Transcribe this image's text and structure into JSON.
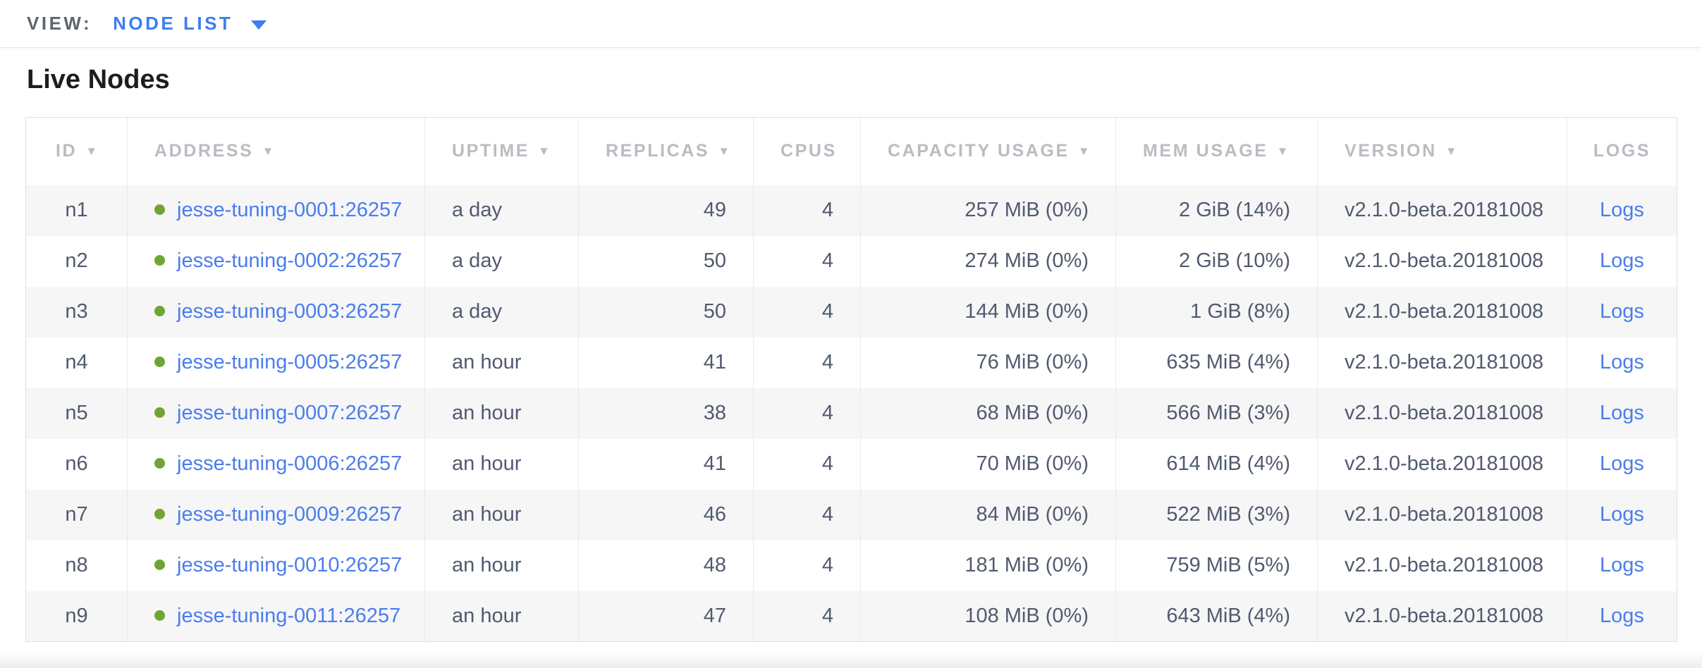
{
  "view_bar": {
    "label": "VIEW:",
    "selected": "NODE LIST"
  },
  "page": {
    "title": "Live Nodes"
  },
  "colors": {
    "link_blue": "#4a7ded",
    "accent_blue": "#3d7cf2",
    "status_green": "#70a533",
    "header_gray": "#b9bcc1",
    "cell_text": "#515a6e"
  },
  "icons": {
    "sort_descending": "▼",
    "node_status": "green-dot"
  },
  "table": {
    "columns": [
      {
        "key": "id",
        "label": "ID",
        "sortable": true
      },
      {
        "key": "address",
        "label": "ADDRESS",
        "sortable": true
      },
      {
        "key": "uptime",
        "label": "UPTIME",
        "sortable": true
      },
      {
        "key": "replicas",
        "label": "REPLICAS",
        "sortable": true
      },
      {
        "key": "cpus",
        "label": "CPUS",
        "sortable": false
      },
      {
        "key": "capacity_usage",
        "label": "CAPACITY USAGE",
        "sortable": true
      },
      {
        "key": "mem_usage",
        "label": "MEM USAGE",
        "sortable": true
      },
      {
        "key": "version",
        "label": "VERSION",
        "sortable": true
      },
      {
        "key": "logs",
        "label": "LOGS",
        "sortable": false
      }
    ],
    "rows": [
      {
        "id": "n1",
        "address": "jesse-tuning-0001:26257",
        "uptime": "a day",
        "replicas": "49",
        "cpus": "4",
        "capacity_usage": "257 MiB (0%)",
        "mem_usage": "2 GiB (14%)",
        "version": "v2.1.0-beta.20181008",
        "logs": "Logs"
      },
      {
        "id": "n2",
        "address": "jesse-tuning-0002:26257",
        "uptime": "a day",
        "replicas": "50",
        "cpus": "4",
        "capacity_usage": "274 MiB (0%)",
        "mem_usage": "2 GiB (10%)",
        "version": "v2.1.0-beta.20181008",
        "logs": "Logs"
      },
      {
        "id": "n3",
        "address": "jesse-tuning-0003:26257",
        "uptime": "a day",
        "replicas": "50",
        "cpus": "4",
        "capacity_usage": "144 MiB (0%)",
        "mem_usage": "1 GiB (8%)",
        "version": "v2.1.0-beta.20181008",
        "logs": "Logs"
      },
      {
        "id": "n4",
        "address": "jesse-tuning-0005:26257",
        "uptime": "an hour",
        "replicas": "41",
        "cpus": "4",
        "capacity_usage": "76 MiB (0%)",
        "mem_usage": "635 MiB (4%)",
        "version": "v2.1.0-beta.20181008",
        "logs": "Logs"
      },
      {
        "id": "n5",
        "address": "jesse-tuning-0007:26257",
        "uptime": "an hour",
        "replicas": "38",
        "cpus": "4",
        "capacity_usage": "68 MiB (0%)",
        "mem_usage": "566 MiB (3%)",
        "version": "v2.1.0-beta.20181008",
        "logs": "Logs"
      },
      {
        "id": "n6",
        "address": "jesse-tuning-0006:26257",
        "uptime": "an hour",
        "replicas": "41",
        "cpus": "4",
        "capacity_usage": "70 MiB (0%)",
        "mem_usage": "614 MiB (4%)",
        "version": "v2.1.0-beta.20181008",
        "logs": "Logs"
      },
      {
        "id": "n7",
        "address": "jesse-tuning-0009:26257",
        "uptime": "an hour",
        "replicas": "46",
        "cpus": "4",
        "capacity_usage": "84 MiB (0%)",
        "mem_usage": "522 MiB (3%)",
        "version": "v2.1.0-beta.20181008",
        "logs": "Logs"
      },
      {
        "id": "n8",
        "address": "jesse-tuning-0010:26257",
        "uptime": "an hour",
        "replicas": "48",
        "cpus": "4",
        "capacity_usage": "181 MiB (0%)",
        "mem_usage": "759 MiB (5%)",
        "version": "v2.1.0-beta.20181008",
        "logs": "Logs"
      },
      {
        "id": "n9",
        "address": "jesse-tuning-0011:26257",
        "uptime": "an hour",
        "replicas": "47",
        "cpus": "4",
        "capacity_usage": "108 MiB (0%)",
        "mem_usage": "643 MiB (4%)",
        "version": "v2.1.0-beta.20181008",
        "logs": "Logs"
      }
    ]
  }
}
